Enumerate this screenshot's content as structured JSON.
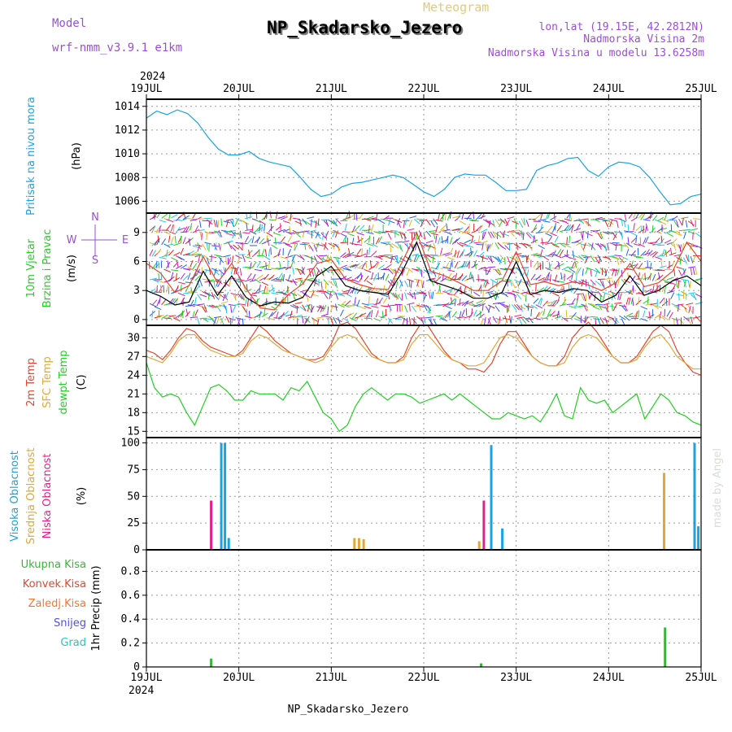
{
  "header": {
    "model_label": "Model",
    "model_name": "wrf-nmm_v3.9.1 e1km",
    "meteogram_label": "Meteogram",
    "station": "NP_Skadarsko_Jezero",
    "lonlat": "lon,lat (19.15E, 42.2812N)",
    "alt": "Nadmorska Visina 2m",
    "model_alt": "Nadmorska Visina u modelu 13.6258m",
    "footer_station": "NP_Skadarsko_Jezero",
    "credit": "made by Angel",
    "year_top": "2024",
    "year_bottom": "2024"
  },
  "colors": {
    "pressure": "#19a3e6",
    "wind_speed": "#000000",
    "gust": "#e6462d",
    "temp2m": "#e6462d",
    "sfc": "#e0a838",
    "dew": "#1ed21e",
    "cloud_high": "#19a3e6",
    "cloud_mid": "#e0a838",
    "cloud_low": "#e61e8c",
    "precip_total": "#3cb43c",
    "precip_conv": "#e6462d",
    "precip_frozen": "#f07832",
    "precip_snow": "#5050e6",
    "precip_hail": "#28c8b4",
    "label_purple": "#9b4fd6",
    "label_gold": "#e6c878"
  },
  "chart_data": {
    "type": "line",
    "x_ticks": [
      "19JUL",
      "20JUL",
      "21JUL",
      "22JUL",
      "23JUL",
      "24JUL",
      "25JUL"
    ],
    "panels": [
      {
        "id": "pressure",
        "ylabel": "Pritisak na nivou mora",
        "unit": "(hPa)",
        "yticks": [
          1006,
          1008,
          1010,
          1012,
          1014
        ],
        "ylim": [
          1005,
          1014.6
        ],
        "series": [
          {
            "values": [
              1013.0,
              1013.6,
              1013.3,
              1013.7,
              1013.4,
              1012.6,
              1011.4,
              1010.4,
              1009.9,
              1009.9,
              1010.2,
              1009.6,
              1009.3,
              1009.1,
              1008.9,
              1008.0,
              1007.0,
              1006.4,
              1006.6,
              1007.2,
              1007.5,
              1007.6,
              1007.8,
              1008.0,
              1008.2,
              1008.0,
              1007.4,
              1006.8,
              1006.4,
              1007.0,
              1008.0,
              1008.3,
              1008.2,
              1008.2,
              1007.6,
              1006.9,
              1006.9,
              1007.0,
              1008.6,
              1009.0,
              1009.2,
              1009.6,
              1009.7,
              1008.6,
              1008.1,
              1008.9,
              1009.3,
              1009.2,
              1008.9,
              1008.0,
              1006.8,
              1005.7,
              1005.8,
              1006.4,
              1006.6
            ]
          }
        ]
      },
      {
        "id": "wind",
        "ylabel": "10m Vjetar",
        "ylabel2": "Brzina i Pravac",
        "unit": "(m/s)",
        "yticks": [
          0,
          3,
          6,
          9
        ],
        "ylim": [
          -0.6,
          11
        ],
        "compass": {
          "n": "N",
          "s": "S",
          "w": "W",
          "e": "E"
        },
        "series": [
          {
            "values": [
              3.0,
              2.4,
              1.5,
              1.8,
              5.0,
              2.5,
              4.5,
              2.3,
              1.4,
              1.8,
              1.7,
              2.3,
              4.5,
              5.5,
              3.5,
              3.0,
              2.8,
              2.6,
              5.0,
              8.0,
              4.0,
              3.5,
              3.0,
              2.2,
              2.2,
              2.8,
              6.0,
              2.6,
              3.0,
              2.8,
              3.2,
              3.0,
              1.8,
              2.5,
              4.5,
              2.5,
              3.0,
              4.0,
              4.5,
              3.5
            ]
          },
          {
            "values": [
              5.8,
              4.8,
              2.8,
              3.5,
              6.5,
              3.8,
              5.8,
              3.2,
              1.2,
              1.0,
              2.6,
              3.7,
              5.8,
              6.2,
              4.2,
              3.6,
              3.2,
              3.1,
              6.0,
              9.0,
              5.0,
              4.5,
              3.8,
              3.0,
              3.0,
              4.0,
              7.0,
              3.6,
              3.9,
              3.5,
              3.9,
              3.6,
              3.0,
              3.8,
              5.8,
              3.4,
              3.8,
              5.0,
              8.0,
              6.0
            ]
          }
        ]
      },
      {
        "id": "temp",
        "ylabel": "2m Temp",
        "ylabel2": "SFC Temp",
        "ylabel3": "dewpt Temp",
        "unit": "(C)",
        "yticks": [
          15,
          18,
          21,
          24,
          27,
          30
        ],
        "ylim": [
          14,
          32
        ],
        "series": [
          {
            "values": [
              28,
              27.5,
              26.5,
              28,
              30,
              31.5,
              31,
              29.5,
              28.5,
              28,
              27.5,
              27,
              28,
              30,
              32,
              31,
              29.5,
              28.5,
              27.5,
              27,
              26.5,
              26.5,
              27,
              29,
              32,
              32.5,
              31.5,
              29.5,
              27.5,
              26.5,
              26,
              26,
              27,
              30,
              32,
              32,
              30,
              28,
              26.5,
              26,
              25,
              25,
              24.5,
              26,
              29,
              31,
              31,
              29,
              27,
              26,
              25.5,
              25.5,
              27,
              30,
              31.5,
              32.5,
              31,
              29,
              27,
              26,
              26,
              27,
              29,
              31,
              32,
              31,
              28,
              26,
              24.5,
              24
            ]
          },
          {
            "values": [
              27,
              26.5,
              26,
              27.5,
              29.5,
              30.5,
              30.5,
              29,
              28,
              27.5,
              27,
              27,
              27.5,
              29.5,
              30.5,
              30,
              29,
              28,
              27.5,
              27,
              26.5,
              26,
              26.5,
              28.5,
              30,
              30.5,
              30,
              28.5,
              27,
              26.5,
              26,
              26,
              26.5,
              29,
              30.5,
              30.5,
              29,
              27.5,
              26.5,
              26,
              25.5,
              25.5,
              26,
              28,
              30,
              30.5,
              30,
              28.5,
              27,
              26,
              25.5,
              25.5,
              26,
              28.5,
              30,
              30.5,
              30,
              28.5,
              27,
              26,
              26,
              26.5,
              28.5,
              30,
              30.5,
              29,
              27,
              26,
              25,
              25
            ]
          },
          {
            "values": [
              26,
              22,
              20.5,
              21,
              20.5,
              18,
              16,
              19,
              22,
              22.5,
              21.5,
              20,
              20,
              21.5,
              21,
              21,
              21,
              20,
              22,
              21.5,
              23,
              20.5,
              18,
              17,
              15,
              16,
              19,
              21,
              22,
              21,
              20,
              21,
              21,
              20.5,
              19.5,
              20,
              20.5,
              21,
              20,
              21,
              20,
              19,
              18,
              17,
              17,
              18,
              17.5,
              17,
              17.5,
              16.5,
              18.5,
              21,
              17.5,
              17,
              22,
              20,
              19.5,
              20,
              18,
              19,
              20,
              21,
              17,
              19,
              21,
              20,
              18,
              17.5,
              16.5,
              16
            ]
          }
        ]
      },
      {
        "id": "cloud",
        "ylabel": "Visoka Oblacnost",
        "ylabel2": "Srednja Oblacnost",
        "ylabel3": "Niska Oblacnost",
        "unit": "(%)",
        "yticks": [
          0,
          25,
          50,
          75,
          100
        ],
        "ylim": [
          0,
          105
        ],
        "series": [
          {
            "name": "high",
            "bars": [
              [
                0.81,
                100
              ],
              [
                0.85,
                100
              ],
              [
                0.89,
                11
              ],
              [
                3.41,
                0
              ],
              [
                3.73,
                98
              ],
              [
                3.85,
                20
              ],
              [
                5.93,
                100
              ],
              [
                5.97,
                22
              ]
            ]
          },
          {
            "name": "mid",
            "bars": [
              [
                2.25,
                11
              ],
              [
                2.3,
                11
              ],
              [
                2.35,
                10
              ],
              [
                3.6,
                8
              ],
              [
                5.6,
                72
              ]
            ]
          },
          {
            "name": "low",
            "bars": [
              [
                0.7,
                46
              ],
              [
                3.65,
                46
              ]
            ]
          }
        ]
      },
      {
        "id": "precip",
        "ylabel": "1hr Precip (mm)",
        "yticks": [
          0,
          0.2,
          0.4,
          0.6,
          0.8
        ],
        "ylim": [
          0,
          0.98
        ],
        "legend": [
          "Ukupna Kisa",
          "Konvek.Kisa",
          "Zaledj.Kisa",
          "Snijeg",
          "Grad"
        ],
        "series": [
          {
            "name": "total",
            "bars": [
              [
                0.7,
                0.07
              ],
              [
                3.62,
                0.03
              ],
              [
                5.61,
                0.33
              ]
            ]
          }
        ]
      }
    ]
  }
}
